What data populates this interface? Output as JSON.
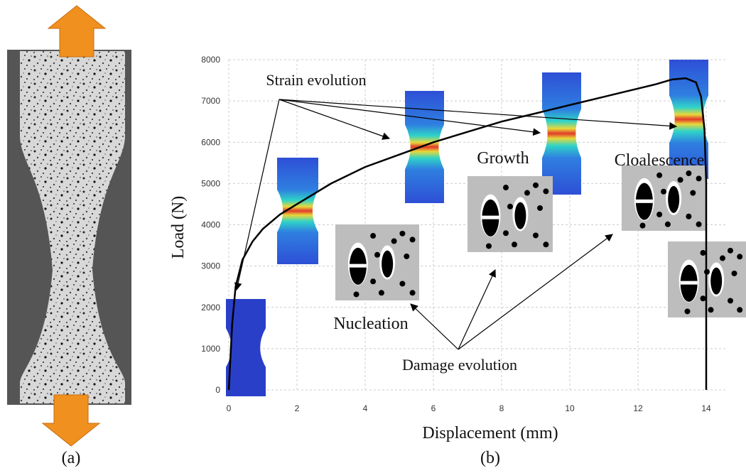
{
  "panel_labels": [
    "(a)",
    "(b)"
  ],
  "chart_data": {
    "type": "line",
    "xlabel": "Displacement (mm)",
    "ylabel": "Load (N)",
    "x": [
      0,
      0.05,
      0.1,
      0.2,
      0.4,
      0.7,
      1,
      1.5,
      2,
      3,
      4,
      5,
      6,
      7,
      8,
      9,
      10,
      11,
      12,
      12.5,
      13,
      13.4,
      13.7,
      13.85,
      13.95,
      14,
      14
    ],
    "values": [
      0,
      800,
      1600,
      2500,
      3150,
      3600,
      3900,
      4250,
      4500,
      5000,
      5400,
      5700,
      6000,
      6250,
      6500,
      6700,
      6900,
      7100,
      7300,
      7400,
      7520,
      7550,
      7450,
      7100,
      6300,
      5000,
      0
    ],
    "color": "#000000",
    "xlim": [
      0,
      14.6
    ],
    "ylim": [
      0,
      8000
    ],
    "xticks": [
      0,
      2,
      4,
      6,
      8,
      10,
      12,
      14
    ],
    "yticks": [
      0,
      1000,
      2000,
      3000,
      4000,
      5000,
      6000,
      7000,
      8000
    ],
    "grid": true,
    "annotations": [
      {
        "text": "Strain evolution"
      },
      {
        "text": "Growth"
      },
      {
        "text": "Cloalescence"
      },
      {
        "text": "Nucleation"
      },
      {
        "text": "Damage evolution"
      }
    ]
  }
}
